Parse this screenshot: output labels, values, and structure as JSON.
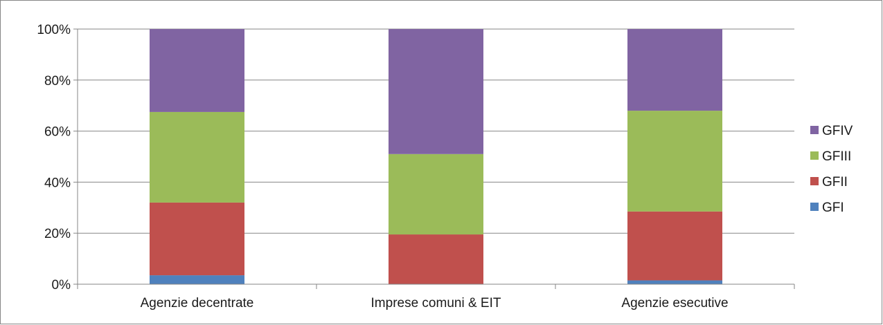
{
  "chart_data": {
    "type": "bar",
    "stacked": true,
    "percent_stacked": true,
    "categories": [
      "Agenzie decentrate",
      "Imprese comuni & EIT",
      "Agenzie esecutive"
    ],
    "series": [
      {
        "name": "GFI",
        "values": [
          3.5,
          0,
          1.5
        ],
        "color": "#4F81BD"
      },
      {
        "name": "GFII",
        "values": [
          28.5,
          19.5,
          27
        ],
        "color": "#C0504D"
      },
      {
        "name": "GFIII",
        "values": [
          35.5,
          31.5,
          39.5
        ],
        "color": "#9BBB59"
      },
      {
        "name": "GFIV",
        "values": [
          32.5,
          49,
          32
        ],
        "color": "#8064A2"
      }
    ],
    "yticks": [
      "0%",
      "20%",
      "40%",
      "60%",
      "80%",
      "100%"
    ],
    "ylim": [
      0,
      100
    ],
    "grid": true,
    "legend_position": "right",
    "legend_order": [
      "GFIV",
      "GFIII",
      "GFII",
      "GFI"
    ]
  }
}
